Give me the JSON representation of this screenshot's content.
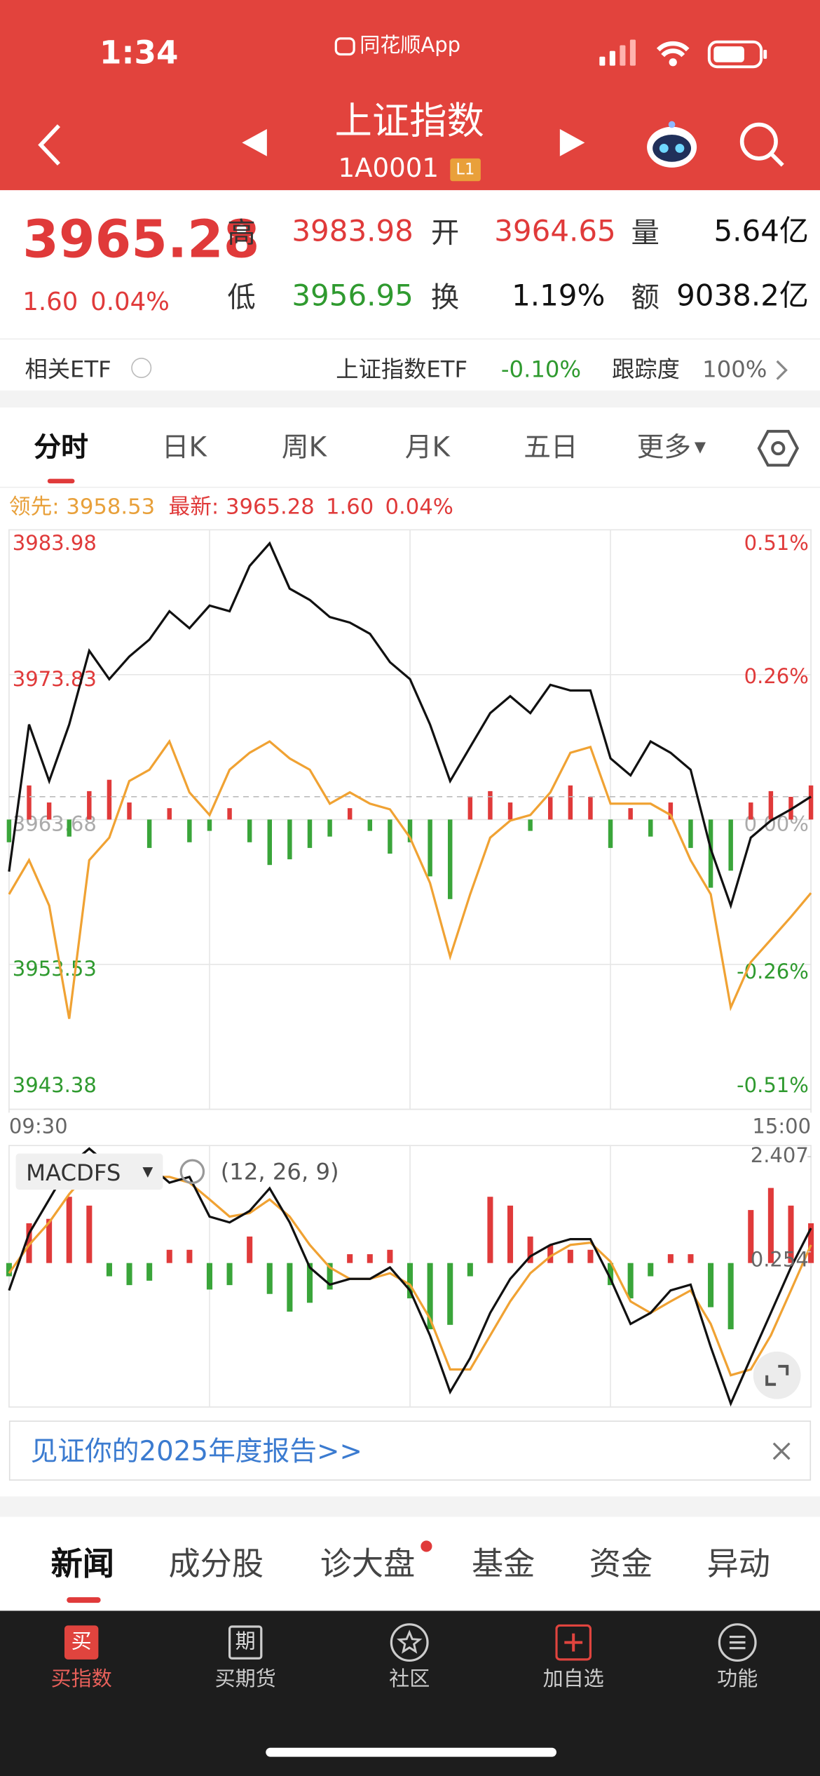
{
  "status_bar": {
    "time": "1:34",
    "app": "同花顺App"
  },
  "header": {
    "title": "上证指数",
    "code": "1A0001",
    "level": "L1"
  },
  "quote": {
    "price": "3965.28",
    "change": "1.60",
    "change_pct": "0.04%",
    "fields": [
      {
        "label": "高",
        "value": "3983.98"
      },
      {
        "label": "开",
        "value": "3964.65"
      },
      {
        "label": "量",
        "value": "5.64亿"
      },
      {
        "label": "低",
        "value": "3956.95"
      },
      {
        "label": "换",
        "value": "1.19%"
      },
      {
        "label": "额",
        "value": "9038.2亿"
      }
    ]
  },
  "etf": {
    "label": "相关ETF",
    "name": "上证指数ETF",
    "change": "-0.10%",
    "tracking_label": "跟踪度",
    "tracking": "100%"
  },
  "tabs": [
    "分时",
    "日K",
    "周K",
    "月K",
    "五日",
    "更多"
  ],
  "legend": {
    "lead_label": "领先:",
    "lead_value": "3958.53",
    "last_label": "最新:",
    "last_value": "3965.28",
    "change": "1.60",
    "change_pct": "0.04%"
  },
  "chart_data": [
    {
      "type": "line",
      "x": [
        0,
        6,
        12,
        18,
        24,
        30,
        36,
        42,
        48,
        54,
        60,
        66,
        72,
        78,
        84,
        90,
        96,
        102,
        108,
        114,
        120,
        126,
        132,
        138,
        144,
        150,
        156,
        162,
        168,
        174,
        180,
        186,
        192,
        198,
        204,
        210,
        216,
        222,
        228,
        234,
        240
      ],
      "xlim": [
        0,
        240
      ],
      "xticks": [
        {
          "value": 0,
          "label": "09:30"
        },
        {
          "value": 240,
          "label": "15:00"
        }
      ],
      "ylim": [
        3943.38,
        3983.98
      ],
      "yticks": [
        3983.98,
        3973.83,
        3963.68,
        3953.53,
        3943.38
      ],
      "y2lim": [
        -0.51,
        0.51
      ],
      "y2ticks": [
        {
          "value": 0.51,
          "label": "0.51%"
        },
        {
          "value": 0.26,
          "label": "0.26%"
        },
        {
          "value": 0,
          "label": "0.00%"
        },
        {
          "value": -0.26,
          "label": "-0.26%"
        },
        {
          "value": -0.51,
          "label": "-0.51%"
        }
      ],
      "grid": true,
      "series": [
        {
          "color": "#111111",
          "values": [
            3960.03,
            3970.34,
            3966.38,
            3970.34,
            3975.5,
            3973.51,
            3975.1,
            3976.29,
            3978.27,
            3977.08,
            3978.67,
            3978.27,
            3981.44,
            3983.03,
            3979.86,
            3979.06,
            3977.87,
            3977.48,
            3976.69,
            3974.7,
            3973.51,
            3970.34,
            3966.38,
            3968.76,
            3971.13,
            3972.32,
            3971.13,
            3973.12,
            3972.72,
            3972.72,
            3967.96,
            3966.77,
            3969.15,
            3968.36,
            3967.17,
            3961.62,
            3957.65,
            3962.41,
            3963.6,
            3964.39,
            3965.28
          ]
        },
        {
          "color": "#f0a233",
          "values": [
            3958.45,
            3960.83,
            3957.65,
            3949.72,
            3960.83,
            3962.41,
            3966.38,
            3967.17,
            3969.15,
            3965.58,
            3964.0,
            3967.17,
            3968.36,
            3969.15,
            3967.96,
            3967.17,
            3964.79,
            3965.58,
            3964.79,
            3964.39,
            3962.41,
            3959.24,
            3954.08,
            3958.45,
            3962.41,
            3963.6,
            3964.0,
            3965.58,
            3968.36,
            3968.76,
            3964.79,
            3964.79,
            3964.79,
            3964.0,
            3960.83,
            3958.45,
            3950.52,
            3953.69,
            3955.27,
            3956.86,
            3958.53
          ]
        }
      ],
      "bars": {
        "axis": "y2",
        "up_color": "#e03a3a",
        "down_color": "#3aa53a",
        "values": [
          -0.04,
          0.06,
          0.03,
          -0.03,
          0.05,
          0.07,
          0.03,
          -0.05,
          0.02,
          -0.04,
          -0.02,
          0.02,
          -0.04,
          -0.08,
          -0.07,
          -0.05,
          -0.03,
          0.02,
          -0.02,
          -0.06,
          -0.04,
          -0.1,
          -0.14,
          0.04,
          0.05,
          0.03,
          -0.02,
          0.04,
          0.06,
          0.04,
          -0.05,
          0.02,
          -0.03,
          0.03,
          -0.05,
          -0.12,
          -0.09,
          0.03,
          0.05,
          0.04,
          0.06
        ]
      }
    },
    {
      "type": "macd",
      "title": "MACDFS",
      "params": "(12, 26, 9)",
      "x": [
        0,
        6,
        12,
        18,
        24,
        30,
        36,
        42,
        48,
        54,
        60,
        66,
        72,
        78,
        84,
        90,
        96,
        102,
        108,
        114,
        120,
        126,
        132,
        138,
        144,
        150,
        156,
        162,
        168,
        174,
        180,
        186,
        192,
        198,
        204,
        210,
        216,
        222,
        228,
        234,
        240
      ],
      "xlim": [
        0,
        240
      ],
      "ylim": [
        -3.26,
        2.66
      ],
      "yticks": [
        2.407,
        0.254
      ],
      "series": [
        {
          "color": "#111111",
          "values": [
            -0.62,
            0.67,
            1.44,
            2.21,
            2.59,
            2.21,
            1.82,
            2.21,
            1.82,
            1.95,
            1.05,
            0.92,
            1.18,
            1.69,
            0.92,
            -0.1,
            -0.49,
            -0.36,
            -0.36,
            -0.1,
            -0.62,
            -1.64,
            -2.92,
            -2.15,
            -1.13,
            -0.36,
            0.15,
            0.41,
            0.54,
            0.54,
            -0.36,
            -1.38,
            -1.13,
            -0.62,
            -0.49,
            -1.9,
            -3.18,
            -2.15,
            -1.13,
            -0.1,
            0.79
          ]
        },
        {
          "color": "#f0a233",
          "values": [
            -0.23,
            0.41,
            0.92,
            1.56,
            2.08,
            2.08,
            1.95,
            1.95,
            1.95,
            1.82,
            1.44,
            1.05,
            1.13,
            1.44,
            1.05,
            0.41,
            -0.1,
            -0.36,
            -0.36,
            -0.23,
            -0.49,
            -1.26,
            -2.41,
            -2.41,
            -1.64,
            -0.87,
            -0.23,
            0.15,
            0.41,
            0.46,
            0.03,
            -0.87,
            -1.13,
            -0.87,
            -0.62,
            -1.38,
            -2.54,
            -2.41,
            -1.64,
            -0.62,
            0.41
          ]
        }
      ],
      "bars": {
        "up_color": "#e03a3a",
        "down_color": "#3aa53a",
        "values": [
          -0.3,
          0.9,
          1.0,
          1.5,
          1.3,
          -0.3,
          -0.5,
          -0.4,
          0.3,
          0.3,
          -0.6,
          -0.5,
          0.6,
          -0.7,
          -1.1,
          -0.9,
          -0.6,
          0.2,
          0.2,
          0.3,
          -0.8,
          -1.5,
          -1.4,
          -0.3,
          1.5,
          1.3,
          0.6,
          0.4,
          0.3,
          0.3,
          -0.5,
          -0.8,
          -0.3,
          0.2,
          0.2,
          -1.0,
          -1.5,
          1.2,
          1.7,
          1.3,
          0.9
        ]
      }
    }
  ],
  "banner": {
    "text": "见证你的2025年度报告>>"
  },
  "news_tabs": [
    "新闻",
    "成分股",
    "诊大盘",
    "基金",
    "资金",
    "异动"
  ],
  "nav": [
    {
      "icon": "买",
      "label": "买指数"
    },
    {
      "icon": "期",
      "label": "买期货"
    },
    {
      "label": "社区"
    },
    {
      "label": "加自选"
    },
    {
      "label": "功能"
    }
  ]
}
